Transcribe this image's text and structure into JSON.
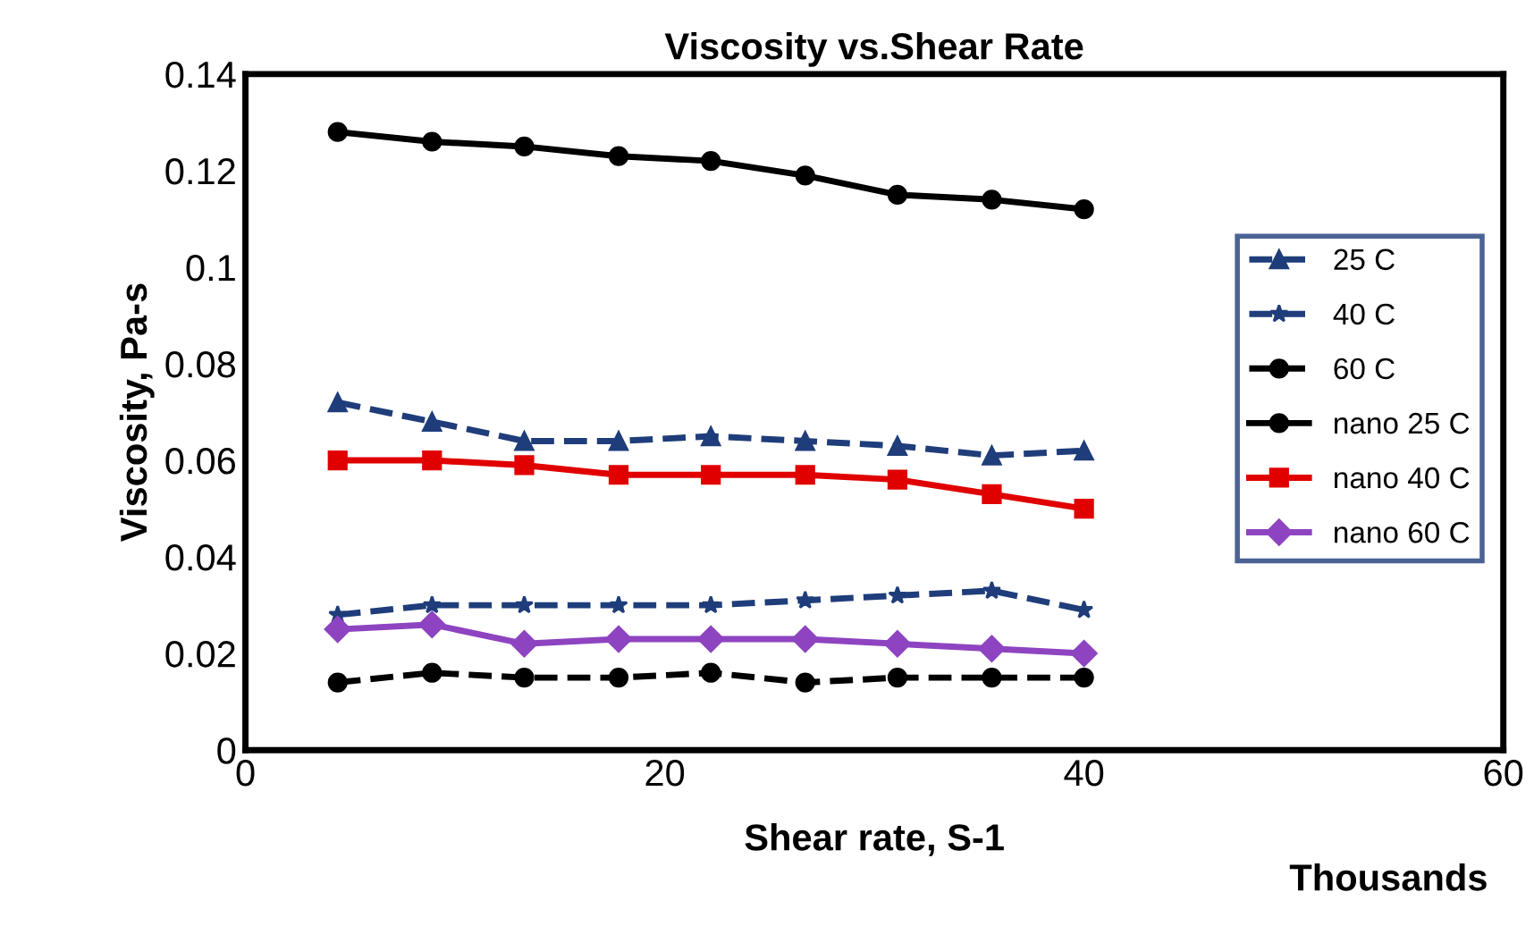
{
  "chart_data": {
    "type": "line",
    "title": "Viscosity vs.Shear Rate",
    "xlabel": "Shear rate, S-1",
    "ylabel": "Viscosity, Pa-s",
    "annotations": [
      "Thousands"
    ],
    "x": [
      4.4,
      8.9,
      13.3,
      17.8,
      22.2,
      26.7,
      31.1,
      35.6,
      40
    ],
    "series": [
      {
        "name": "25 C",
        "color": "#1f3d7a",
        "marker": "triangle",
        "line_style": "dashed",
        "values": [
          0.072,
          0.068,
          0.064,
          0.064,
          0.065,
          0.064,
          0.063,
          0.061,
          0.062
        ]
      },
      {
        "name": "40 C",
        "color": "#1f3d7a",
        "marker": "star",
        "line_style": "dashed",
        "values": [
          0.028,
          0.03,
          0.03,
          0.03,
          0.03,
          0.031,
          0.032,
          0.033,
          0.029
        ]
      },
      {
        "name": "60 C",
        "color": "#000000",
        "marker": "circle",
        "line_style": "dashed",
        "values": [
          0.014,
          0.016,
          0.015,
          0.015,
          0.016,
          0.014,
          0.015,
          0.015,
          0.015
        ]
      },
      {
        "name": "nano 25 C",
        "color": "#000000",
        "marker": "circle",
        "line_style": "solid",
        "values": [
          0.128,
          0.126,
          0.125,
          0.123,
          0.122,
          0.119,
          0.115,
          0.114,
          0.112
        ]
      },
      {
        "name": "nano 40 C",
        "color": "#e00000",
        "marker": "square",
        "line_style": "solid",
        "values": [
          0.06,
          0.06,
          0.059,
          0.057,
          0.057,
          0.057,
          0.056,
          0.053,
          0.05
        ]
      },
      {
        "name": "nano 60 C",
        "color": "#8e44c0",
        "marker": "diamond",
        "line_style": "solid",
        "values": [
          0.025,
          0.026,
          0.022,
          0.023,
          0.023,
          0.023,
          0.022,
          0.021,
          0.02
        ]
      }
    ],
    "xlim": [
      0,
      60
    ],
    "xticks": [
      0,
      20,
      40,
      60
    ],
    "ylim": [
      0,
      0.14
    ],
    "yticks": [
      0,
      0.02,
      0.04,
      0.06,
      0.08,
      0.1,
      0.12,
      0.14
    ],
    "grid": false,
    "legend": "right"
  }
}
